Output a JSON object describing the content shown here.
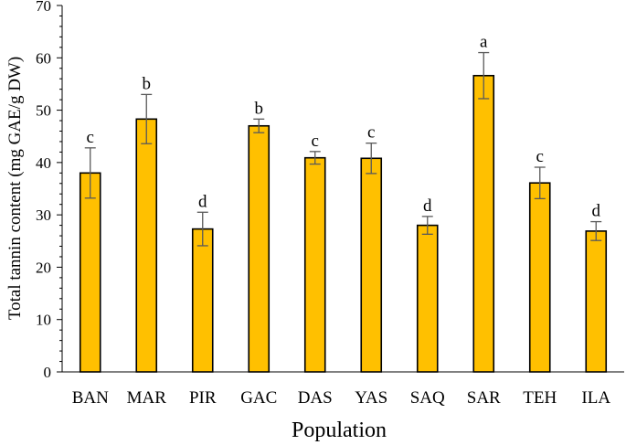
{
  "chart_data": {
    "type": "bar",
    "title": "",
    "xlabel": "Population",
    "ylabel": "Total tannin content  (mg GAE/g DW)",
    "ylim": [
      0,
      70
    ],
    "y_ticks": [
      0,
      10,
      20,
      30,
      40,
      50,
      60,
      70
    ],
    "grid": false,
    "legend": "none",
    "bar_color": "#FFC000",
    "bar_edge_color": "#000000",
    "error_bar_color": "#595959",
    "categories": [
      "BAN",
      "MAR",
      "PIR",
      "GAC",
      "DAS",
      "YAS",
      "SAQ",
      "SAR",
      "TEH",
      "ILA"
    ],
    "values": [
      38.0,
      48.3,
      27.3,
      47.0,
      40.9,
      40.8,
      28.0,
      56.6,
      36.1,
      26.9
    ],
    "errors": [
      4.8,
      4.7,
      3.2,
      1.3,
      1.2,
      2.9,
      1.7,
      4.4,
      3.0,
      1.8
    ],
    "significance_letters": [
      "c",
      "b",
      "d",
      "b",
      "c",
      "c",
      "d",
      "a",
      "c",
      "d"
    ]
  }
}
